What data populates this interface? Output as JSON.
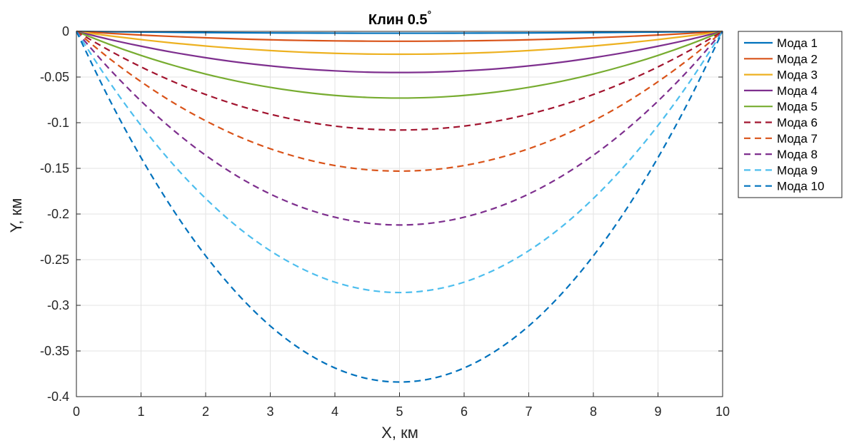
{
  "chart_data": {
    "type": "line",
    "title": "Клин 0.5",
    "title_superscript": "°",
    "xlabel": "X, км",
    "ylabel": "Y, км",
    "xlim": [
      0,
      10
    ],
    "ylim": [
      -0.4,
      0
    ],
    "xticks": [
      0,
      1,
      2,
      3,
      4,
      5,
      6,
      7,
      8,
      9,
      10
    ],
    "xtick_labels": [
      "0",
      "1",
      "2",
      "3",
      "4",
      "5",
      "6",
      "7",
      "8",
      "9",
      "10"
    ],
    "yticks": [
      0,
      -0.05,
      -0.1,
      -0.15,
      -0.2,
      -0.25,
      -0.3,
      -0.35,
      -0.4
    ],
    "ytick_labels": [
      "0",
      "-0.05",
      "-0.1",
      "-0.15",
      "-0.2",
      "-0.25",
      "-0.3",
      "-0.35",
      "-0.4"
    ],
    "grid": true,
    "legend_position": "outside-top-right",
    "x": [
      0,
      0.5,
      1,
      1.5,
      2,
      2.5,
      3,
      3.5,
      4,
      4.5,
      5,
      5.5,
      6,
      6.5,
      7,
      7.5,
      8,
      8.5,
      9,
      9.5,
      10
    ],
    "series": [
      {
        "name": "Мода 1",
        "color": "#0072BD",
        "dash": "solid",
        "values": [
          0,
          -0.0004,
          -0.0007,
          -0.001,
          -0.0013,
          -0.0015,
          -0.0017,
          -0.0018,
          -0.0019,
          -0.002,
          -0.002,
          -0.002,
          -0.0019,
          -0.0018,
          -0.0017,
          -0.0015,
          -0.0013,
          -0.001,
          -0.0007,
          -0.0004,
          0
        ]
      },
      {
        "name": "Мода 2",
        "color": "#D95319",
        "dash": "solid",
        "values": [
          0,
          -0.0021,
          -0.004,
          -0.0056,
          -0.007,
          -0.0082,
          -0.0092,
          -0.0099,
          -0.0104,
          -0.0107,
          -0.0108,
          -0.0107,
          -0.0104,
          -0.0099,
          -0.0092,
          -0.0082,
          -0.007,
          -0.0056,
          -0.004,
          -0.0021,
          0
        ]
      },
      {
        "name": "Мода 3",
        "color": "#EDB120",
        "dash": "solid",
        "values": [
          0,
          -0.0048,
          -0.009,
          -0.0128,
          -0.016,
          -0.0188,
          -0.021,
          -0.0228,
          -0.024,
          -0.0248,
          -0.025,
          -0.0248,
          -0.024,
          -0.0228,
          -0.021,
          -0.0188,
          -0.016,
          -0.0128,
          -0.009,
          -0.0048,
          0
        ]
      },
      {
        "name": "Мода 4",
        "color": "#7E2F8E",
        "dash": "solid",
        "values": [
          0,
          -0.0086,
          -0.0162,
          -0.023,
          -0.0288,
          -0.0338,
          -0.0378,
          -0.041,
          -0.0432,
          -0.0446,
          -0.045,
          -0.0446,
          -0.0432,
          -0.041,
          -0.0378,
          -0.0338,
          -0.0288,
          -0.023,
          -0.0162,
          -0.0086,
          0
        ]
      },
      {
        "name": "Мода 5",
        "color": "#77AC30",
        "dash": "solid",
        "values": [
          0,
          -0.0139,
          -0.0263,
          -0.0372,
          -0.0467,
          -0.0547,
          -0.0613,
          -0.0664,
          -0.0701,
          -0.0723,
          -0.073,
          -0.0723,
          -0.0701,
          -0.0664,
          -0.0613,
          -0.0547,
          -0.0467,
          -0.0372,
          -0.0263,
          -0.0139,
          0
        ]
      },
      {
        "name": "Мода 6",
        "color": "#A2142F",
        "dash": "dashed",
        "values": [
          0,
          -0.0205,
          -0.0389,
          -0.0551,
          -0.0691,
          -0.081,
          -0.0907,
          -0.0983,
          -0.1037,
          -0.1069,
          -0.108,
          -0.1069,
          -0.1037,
          -0.0983,
          -0.0907,
          -0.081,
          -0.0691,
          -0.0551,
          -0.0389,
          -0.0205,
          0
        ]
      },
      {
        "name": "Мода 7",
        "color": "#D95319",
        "dash": "dashed",
        "values": [
          0,
          -0.0291,
          -0.0551,
          -0.0781,
          -0.0979,
          -0.1148,
          -0.1285,
          -0.1392,
          -0.1469,
          -0.1515,
          -0.153,
          -0.1515,
          -0.1469,
          -0.1392,
          -0.1285,
          -0.1148,
          -0.0979,
          -0.0781,
          -0.0551,
          -0.0291,
          0
        ]
      },
      {
        "name": "Мода 8",
        "color": "#7E2F8E",
        "dash": "dashed",
        "values": [
          0,
          -0.0403,
          -0.0763,
          -0.1081,
          -0.1357,
          -0.159,
          -0.1781,
          -0.1929,
          -0.2035,
          -0.2099,
          -0.212,
          -0.2099,
          -0.2035,
          -0.1929,
          -0.1781,
          -0.159,
          -0.1357,
          -0.1081,
          -0.0763,
          -0.0403,
          0
        ]
      },
      {
        "name": "Мода 9",
        "color": "#4DBEEE",
        "dash": "dashed",
        "values": [
          0,
          -0.0543,
          -0.103,
          -0.1459,
          -0.183,
          -0.2145,
          -0.2402,
          -0.2602,
          -0.2746,
          -0.2831,
          -0.286,
          -0.2831,
          -0.2746,
          -0.2602,
          -0.2402,
          -0.2145,
          -0.183,
          -0.1459,
          -0.103,
          -0.0543,
          0
        ]
      },
      {
        "name": "Мода 10",
        "color": "#0072BD",
        "dash": "dashed",
        "values": [
          0,
          -0.073,
          -0.1382,
          -0.1958,
          -0.2458,
          -0.288,
          -0.3226,
          -0.3494,
          -0.3686,
          -0.3802,
          -0.384,
          -0.3802,
          -0.3686,
          -0.3494,
          -0.3226,
          -0.288,
          -0.2458,
          -0.1958,
          -0.1382,
          -0.073,
          0
        ]
      }
    ]
  }
}
